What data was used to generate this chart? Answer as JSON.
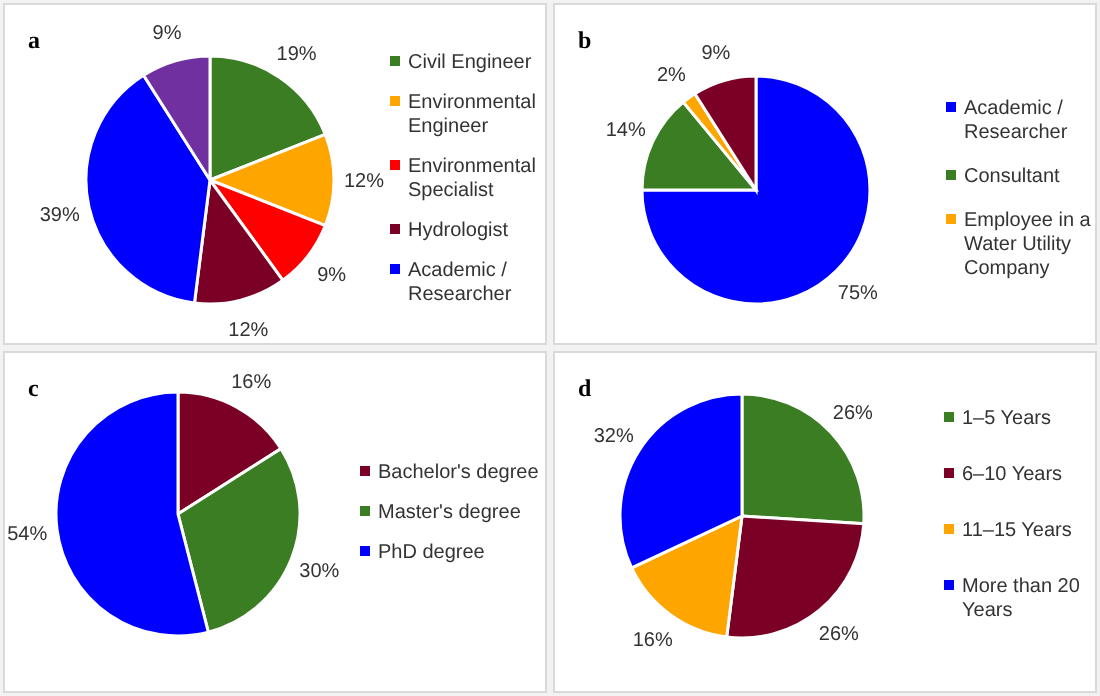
{
  "chart_data": [
    {
      "type": "pie",
      "title": "a",
      "categories": [
        "Civil Engineer",
        "Environmental Engineer",
        "Environmental Specialist",
        "Hydrologist",
        "Academic / Researcher",
        null
      ],
      "values": [
        19,
        12,
        9,
        12,
        39,
        9
      ],
      "value_labels": [
        "19%",
        "12%",
        "9%",
        "12%",
        "39%",
        "9%"
      ],
      "colors": [
        "#3a7d22",
        "#ffa500",
        "#ff0000",
        "#7b0025",
        "#0000ff",
        "#7030a0"
      ],
      "legend": "right"
    },
    {
      "type": "pie",
      "title": "b",
      "categories": [
        "Academic / Researcher",
        "Consultant",
        "Employee in a Water Utility Company",
        null
      ],
      "values": [
        75,
        14,
        2,
        9
      ],
      "value_labels": [
        "75%",
        "14%",
        "2%",
        "9%"
      ],
      "colors": [
        "#0000ff",
        "#3a7d22",
        "#ffa500",
        "#7b0025"
      ],
      "legend": "right"
    },
    {
      "type": "pie",
      "title": "c",
      "categories": [
        "Bachelor's degree",
        "Master's degree",
        "PhD degree"
      ],
      "values": [
        16,
        30,
        54
      ],
      "value_labels": [
        "16%",
        "30%",
        "54%"
      ],
      "colors": [
        "#7b0025",
        "#3a7d22",
        "#0000ff"
      ],
      "legend": "right"
    },
    {
      "type": "pie",
      "title": "d",
      "categories": [
        "1–5 Years",
        "6–10 Years",
        "11–15 Years",
        "More than 20 Years"
      ],
      "values": [
        26,
        26,
        16,
        32
      ],
      "value_labels": [
        "26%",
        "26%",
        "16%",
        "32%"
      ],
      "colors": [
        "#3a7d22",
        "#7b0025",
        "#ffa500",
        "#0000ff"
      ],
      "legend": "right"
    }
  ]
}
